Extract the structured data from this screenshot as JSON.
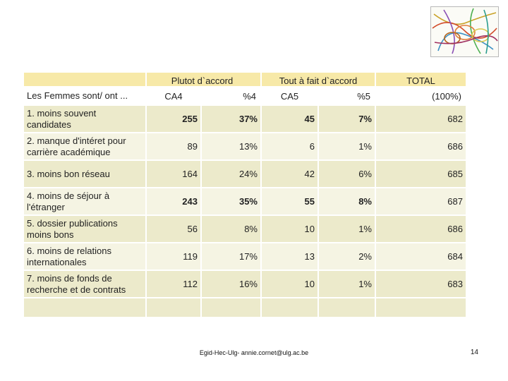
{
  "header": {
    "plutot": "Plutot d`accord",
    "tout": "Tout à fait d`accord",
    "total": "TOTAL"
  },
  "subheader": {
    "label": "Les Femmes sont/ ont ...",
    "ca4": "CA4",
    "p4": "%4",
    "ca5": "CA5",
    "p5": "%5",
    "total": "(100%)"
  },
  "rows": [
    {
      "label": "1. moins souvent candidates",
      "ca4": "255",
      "p4": "37%",
      "ca5": "45",
      "p5": "7%",
      "total": "682"
    },
    {
      "label": "2. manque d'intéret pour carrière académique",
      "ca4": "89",
      "p4": "13%",
      "ca5": "6",
      "p5": "1%",
      "total": "686"
    },
    {
      "label": "3. moins bon réseau",
      "ca4": "164",
      "p4": "24%",
      "ca5": "42",
      "p5": "6%",
      "total": "685"
    },
    {
      "label": "4. moins de séjour à l'étranger",
      "ca4": "243",
      "p4": "35%",
      "ca5": "55",
      "p5": "8%",
      "total": "687"
    },
    {
      "label": "5. dossier publications moins bons",
      "ca4": "56",
      "p4": "8%",
      "ca5": "10",
      "p5": "1%",
      "total": "686"
    },
    {
      "label": "6. moins de relations internationales",
      "ca4": "119",
      "p4": "17%",
      "ca5": "13",
      "p5": "2%",
      "total": "684"
    },
    {
      "label": "7. moins de fonds de recherche et de contrats",
      "ca4": "112",
      "p4": "16%",
      "ca5": "10",
      "p5": "1%",
      "total": "683"
    }
  ],
  "footer": "Egid-Hec-Ulg- annie.cornet@ulg.ac.be",
  "page_number": "14",
  "logo_icon": "threads-logo-icon"
}
